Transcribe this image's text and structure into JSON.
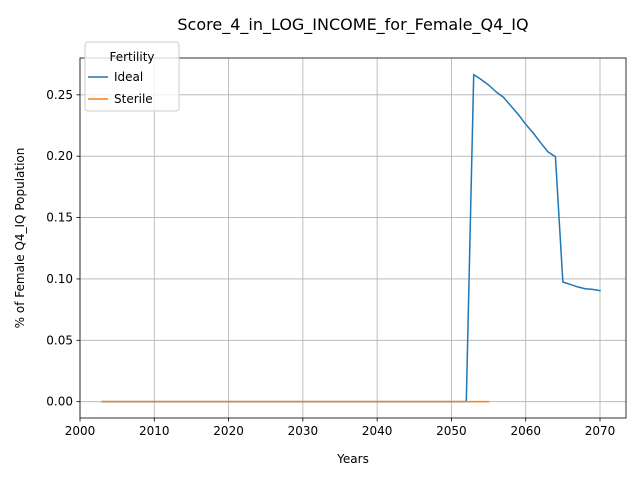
{
  "chart_data": {
    "type": "line",
    "title": "Score_4_in_LOG_INCOME_for_Female_Q4_IQ",
    "xlabel": "Years",
    "ylabel": "% of Female Q4_IQ Population",
    "xlim": [
      2000,
      2073.5
    ],
    "ylim": [
      -0.0133,
      0.28
    ],
    "xticks": [
      2000,
      2010,
      2020,
      2030,
      2040,
      2050,
      2060,
      2070
    ],
    "yticks": [
      0.0,
      0.05,
      0.1,
      0.15,
      0.2,
      0.25
    ],
    "ytick_labels": [
      "0.00",
      "0.05",
      "0.10",
      "0.15",
      "0.20",
      "0.25"
    ],
    "grid": true,
    "legend": {
      "title": "Fertility",
      "placement": "top-left"
    },
    "series": [
      {
        "name": "Ideal",
        "color": "#1f77b4",
        "x": [
          2003,
          2010,
          2020,
          2030,
          2040,
          2050,
          2052,
          2053,
          2054,
          2055,
          2056,
          2057,
          2058,
          2059,
          2060,
          2061,
          2062,
          2063,
          2064,
          2065,
          2066,
          2067,
          2068,
          2069,
          2070
        ],
        "y": [
          0,
          0,
          0,
          0,
          0,
          0,
          0,
          0.2665,
          0.2625,
          0.258,
          0.2525,
          0.248,
          0.241,
          0.234,
          0.226,
          0.219,
          0.211,
          0.2035,
          0.1995,
          0.0975,
          0.0955,
          0.0935,
          0.092,
          0.0915,
          0.0905
        ]
      },
      {
        "name": "Sterile",
        "color": "#ff7f0e",
        "x": [
          2003,
          2010,
          2020,
          2030,
          2040,
          2050,
          2055
        ],
        "y": [
          0,
          0,
          0,
          0,
          0,
          0,
          0
        ]
      }
    ]
  }
}
